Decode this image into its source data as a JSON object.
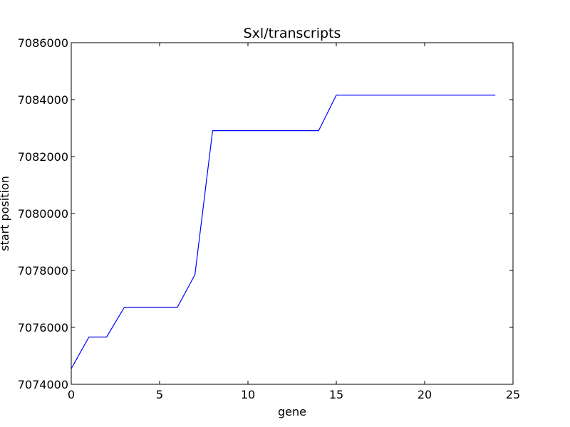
{
  "chart_data": {
    "type": "line",
    "title": "Sxl/transcripts",
    "xlabel": "gene",
    "ylabel": "start position",
    "xlim": [
      0,
      25
    ],
    "ylim": [
      7074000,
      7086000
    ],
    "xticks": [
      0,
      5,
      10,
      15,
      20,
      25
    ],
    "yticks": [
      7074000,
      7076000,
      7078000,
      7080000,
      7082000,
      7084000,
      7086000
    ],
    "grid": false,
    "line_color": "#0000ff",
    "series": [
      {
        "x": [
          0,
          1,
          2,
          3,
          4,
          5,
          6,
          7,
          8,
          9,
          10,
          11,
          12,
          13,
          14,
          15,
          16,
          17,
          18,
          19,
          20,
          21,
          22,
          23,
          24
        ],
        "y": [
          7074550,
          7075660,
          7075660,
          7076700,
          7076700,
          7076700,
          7076700,
          7077850,
          7082910,
          7082910,
          7082910,
          7082910,
          7082910,
          7082910,
          7082910,
          7084160,
          7084160,
          7084160,
          7084160,
          7084160,
          7084160,
          7084160,
          7084160,
          7084160,
          7084160
        ]
      }
    ]
  }
}
